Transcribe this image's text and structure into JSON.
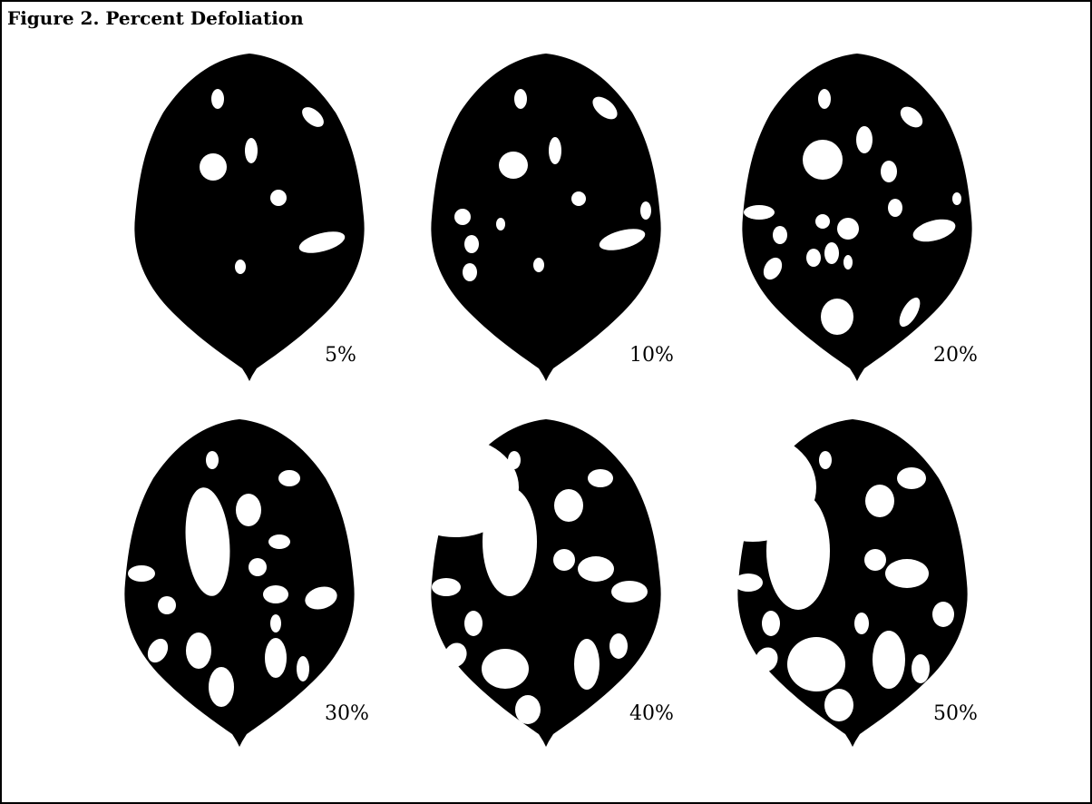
{
  "figure": {
    "title": "Figure 2. Percent Defoliation"
  },
  "leaves": [
    {
      "label": "5%",
      "defoliation_percent": 5
    },
    {
      "label": "10%",
      "defoliation_percent": 10
    },
    {
      "label": "20%",
      "defoliation_percent": 20
    },
    {
      "label": "30%",
      "defoliation_percent": 30
    },
    {
      "label": "40%",
      "defoliation_percent": 40
    },
    {
      "label": "50%",
      "defoliation_percent": 50
    }
  ],
  "colors": {
    "leaf": "#000000",
    "hole": "#ffffff",
    "border": "#000000"
  }
}
